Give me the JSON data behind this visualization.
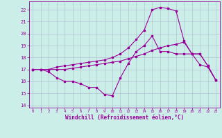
{
  "xlabel": "Windchill (Refroidissement éolien,°C)",
  "bg_color": "#cceee8",
  "line_color": "#990099",
  "grid_color": "#aabbcc",
  "xlim": [
    -0.5,
    23.5
  ],
  "ylim": [
    13.8,
    22.7
  ],
  "yticks": [
    14,
    15,
    16,
    17,
    18,
    19,
    20,
    21,
    22
  ],
  "xticks": [
    0,
    1,
    2,
    3,
    4,
    5,
    6,
    7,
    8,
    9,
    10,
    11,
    12,
    13,
    14,
    15,
    16,
    17,
    18,
    19,
    20,
    21,
    22,
    23
  ],
  "curve1_x": [
    0,
    1,
    2,
    3,
    4,
    5,
    6,
    7,
    8,
    9,
    10,
    11,
    12,
    13,
    14,
    15,
    16,
    17,
    18,
    19,
    20,
    21,
    22,
    23
  ],
  "curve1_y": [
    17.0,
    17.0,
    16.8,
    16.3,
    16.0,
    16.0,
    15.8,
    15.5,
    15.5,
    14.9,
    14.8,
    16.3,
    17.5,
    18.5,
    19.0,
    19.8,
    18.5,
    18.5,
    18.3,
    18.3,
    18.3,
    18.3,
    17.3,
    16.1
  ],
  "curve2_x": [
    0,
    1,
    2,
    3,
    4,
    5,
    6,
    7,
    8,
    9,
    10,
    11,
    12,
    13,
    14,
    15,
    16,
    17,
    18,
    19,
    20,
    21,
    22,
    23
  ],
  "curve2_y": [
    17.0,
    17.0,
    17.0,
    17.0,
    17.0,
    17.1,
    17.2,
    17.3,
    17.4,
    17.5,
    17.6,
    17.7,
    17.9,
    18.1,
    18.3,
    18.6,
    18.8,
    19.0,
    19.1,
    19.3,
    18.3,
    18.3,
    17.3,
    16.1
  ],
  "curve3_x": [
    0,
    1,
    2,
    3,
    4,
    5,
    6,
    7,
    8,
    9,
    10,
    11,
    12,
    13,
    14,
    15,
    16,
    17,
    18,
    19,
    20,
    21,
    22,
    23
  ],
  "curve3_y": [
    17.0,
    17.0,
    17.0,
    17.2,
    17.3,
    17.4,
    17.5,
    17.6,
    17.7,
    17.8,
    18.0,
    18.3,
    18.8,
    19.5,
    20.3,
    22.0,
    22.2,
    22.1,
    21.9,
    19.4,
    18.3,
    17.4,
    17.2,
    16.1
  ]
}
